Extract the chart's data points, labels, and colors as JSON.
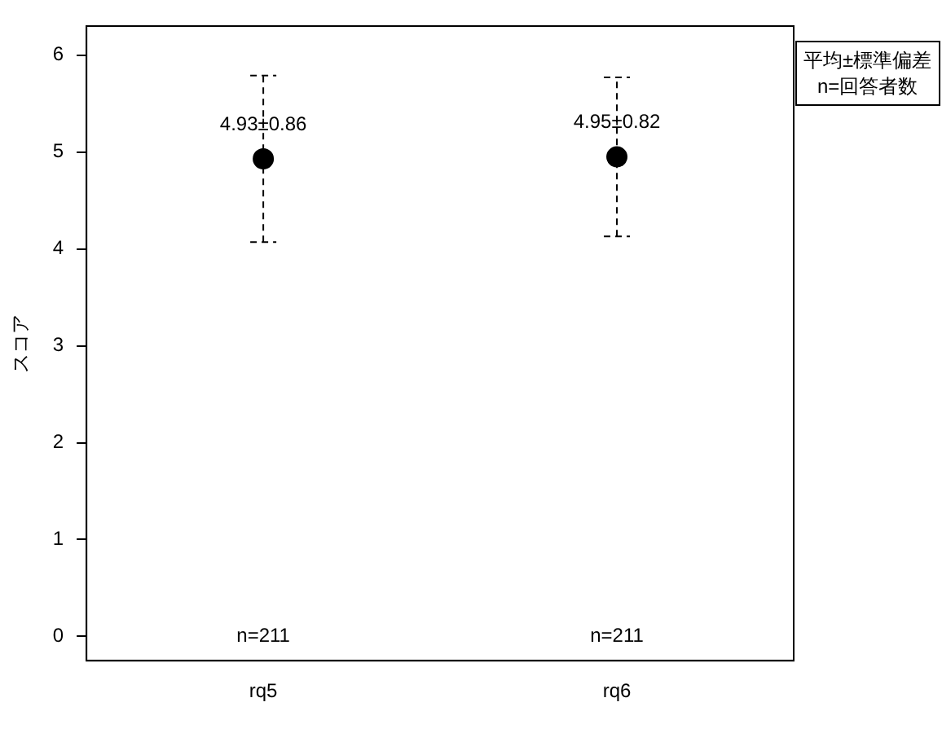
{
  "chart_data": {
    "type": "scatter",
    "ylabel": "スコア",
    "categories": [
      "rq5",
      "rq6"
    ],
    "series": [
      {
        "color": "#000000",
        "values": [
          4.93,
          4.95
        ],
        "errors": [
          0.86,
          0.82
        ],
        "value_labels": [
          "4.93±0.86",
          "4.95±0.82"
        ],
        "line_style": "dashed"
      }
    ],
    "ylim": [
      -0.25,
      6.3
    ],
    "yticks": [
      0,
      1,
      2,
      3,
      4,
      5,
      6
    ],
    "grid": false,
    "marker": "circle",
    "annotations": [
      "平均±標準偏差",
      "n=回答者数",
      "n=211",
      "n=211"
    ]
  }
}
